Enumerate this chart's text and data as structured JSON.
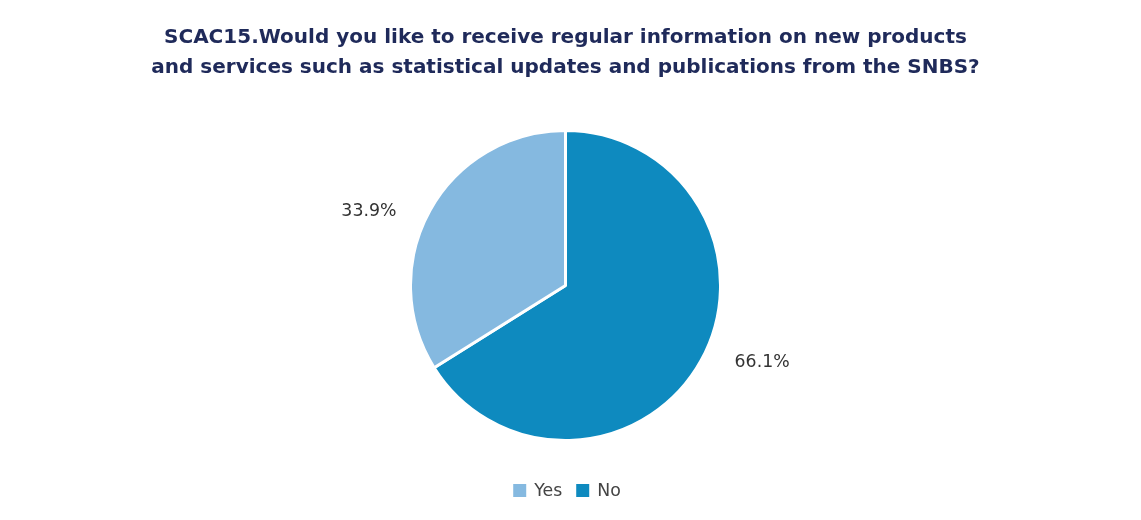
{
  "chart_data": {
    "type": "pie",
    "title": "SCAC15.Would you like to receive regular information on new products\nand services such as statistical updates and publications from the SNBS?",
    "categories": [
      "Yes",
      "No"
    ],
    "values": [
      33.9,
      66.1
    ],
    "colors": [
      "#85b9e0",
      "#0e8abf"
    ],
    "value_labels": [
      "33.9%",
      "66.1%"
    ],
    "legend": "bottom"
  }
}
